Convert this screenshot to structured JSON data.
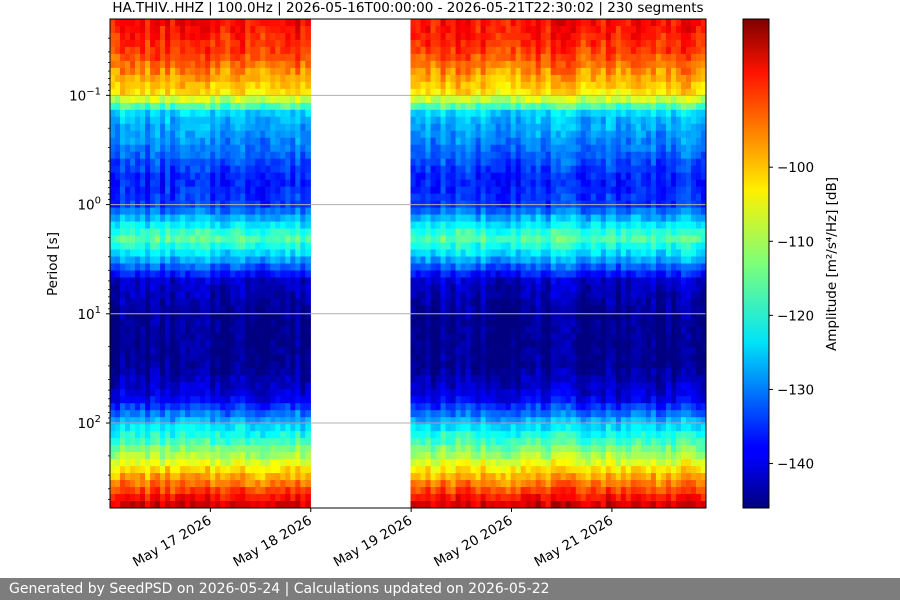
{
  "chart_data": {
    "type": "heatmap",
    "title": "HA.THIV..HHZ | 100.0Hz | 2026-05-16T00:00:00 - 2026-05-21T22:30:02 | 230 segments",
    "xlabel": "",
    "ylabel": "Period [s]",
    "colorbar_label": "Amplitude [m²/s⁴/Hz] [dB]",
    "colorbar_range": [
      -146,
      -80
    ],
    "colorbar_ticks": [
      {
        "value": -100,
        "label": "−100"
      },
      {
        "value": -110,
        "label": "−110"
      },
      {
        "value": -120,
        "label": "−120"
      },
      {
        "value": -130,
        "label": "−130"
      },
      {
        "value": -140,
        "label": "−140"
      }
    ],
    "colormap": "jet",
    "x_range": [
      "2026-05-16T00:00:00",
      "2026-05-21T22:30:02"
    ],
    "x_ticks": [
      "May 17 2026",
      "May 18 2026",
      "May 19 2026",
      "May 20 2026",
      "May 21 2026"
    ],
    "y_scale": "log",
    "y_inverted": true,
    "y_range": [
      0.02,
      600
    ],
    "y_ticks": [
      {
        "value": 0.1,
        "base": "10",
        "exp": "−1"
      },
      {
        "value": 1,
        "base": "10",
        "exp": "0"
      },
      {
        "value": 10,
        "base": "10",
        "exp": "1"
      },
      {
        "value": 100,
        "base": "10",
        "exp": "2"
      }
    ],
    "grid": "horizontal",
    "data_gaps": [
      {
        "start": "2026-05-16T23:55:00",
        "end": "2026-05-17T00:05:00"
      },
      {
        "start": "2026-05-17T23:50:00",
        "end": "2026-05-19T00:00:00"
      },
      {
        "start": "2026-05-19T23:55:00",
        "end": "2026-05-20T00:05:00"
      },
      {
        "start": "2026-05-20T23:55:00",
        "end": "2026-05-21T00:05:00"
      }
    ],
    "amplitude_profile_db": [
      {
        "period": 0.02,
        "level": -88
      },
      {
        "period": 0.04,
        "level": -92
      },
      {
        "period": 0.1,
        "level": -104
      },
      {
        "period": 0.15,
        "level": -125
      },
      {
        "period": 0.3,
        "level": -130
      },
      {
        "period": 0.6,
        "level": -136
      },
      {
        "period": 1,
        "level": -134
      },
      {
        "period": 2,
        "level": -115
      },
      {
        "period": 3,
        "level": -125
      },
      {
        "period": 5,
        "level": -141
      },
      {
        "period": 10,
        "level": -145
      },
      {
        "period": 30,
        "level": -145
      },
      {
        "period": 60,
        "level": -139
      },
      {
        "period": 100,
        "level": -125
      },
      {
        "period": 200,
        "level": -110
      },
      {
        "period": 300,
        "level": -100
      },
      {
        "period": 600,
        "level": -84
      }
    ]
  },
  "footer": {
    "text": "Generated by SeedPSD on 2026-05-24 | Calculations updated on 2026-05-22"
  }
}
